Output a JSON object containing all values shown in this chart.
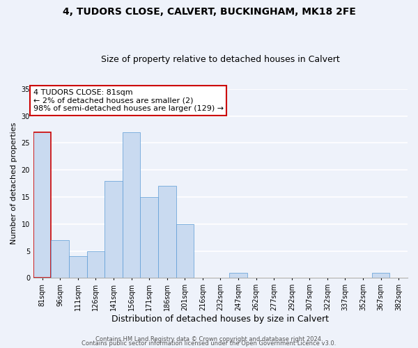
{
  "title1": "4, TUDORS CLOSE, CALVERT, BUCKINGHAM, MK18 2FE",
  "title2": "Size of property relative to detached houses in Calvert",
  "xlabel": "Distribution of detached houses by size in Calvert",
  "ylabel": "Number of detached properties",
  "bins": [
    "81sqm",
    "96sqm",
    "111sqm",
    "126sqm",
    "141sqm",
    "156sqm",
    "171sqm",
    "186sqm",
    "201sqm",
    "216sqm",
    "232sqm",
    "247sqm",
    "262sqm",
    "277sqm",
    "292sqm",
    "307sqm",
    "322sqm",
    "337sqm",
    "352sqm",
    "367sqm",
    "382sqm"
  ],
  "counts": [
    27,
    7,
    4,
    5,
    18,
    27,
    15,
    17,
    10,
    0,
    0,
    1,
    0,
    0,
    0,
    0,
    0,
    0,
    0,
    1,
    0
  ],
  "bar_color": "#c9daf0",
  "bar_edge_color": "#5b9bd5",
  "highlight_bar_index": 0,
  "highlight_bar_edge_color": "#cc0000",
  "annotation_title": "4 TUDORS CLOSE: 81sqm",
  "annotation_line1": "← 2% of detached houses are smaller (2)",
  "annotation_line2": "98% of semi-detached houses are larger (129) →",
  "annotation_box_edge_color": "#cc0000",
  "annotation_box_face_color": "#ffffff",
  "ylim": [
    0,
    35
  ],
  "yticks": [
    0,
    5,
    10,
    15,
    20,
    25,
    30,
    35
  ],
  "footer1": "Contains HM Land Registry data © Crown copyright and database right 2024.",
  "footer2": "Contains public sector information licensed under the Open Government Licence v3.0.",
  "background_color": "#eef2fa",
  "title1_fontsize": 10,
  "title2_fontsize": 9,
  "ylabel_fontsize": 8,
  "xlabel_fontsize": 9,
  "tick_fontsize": 7,
  "footer_fontsize": 6,
  "ann_fontsize": 8
}
